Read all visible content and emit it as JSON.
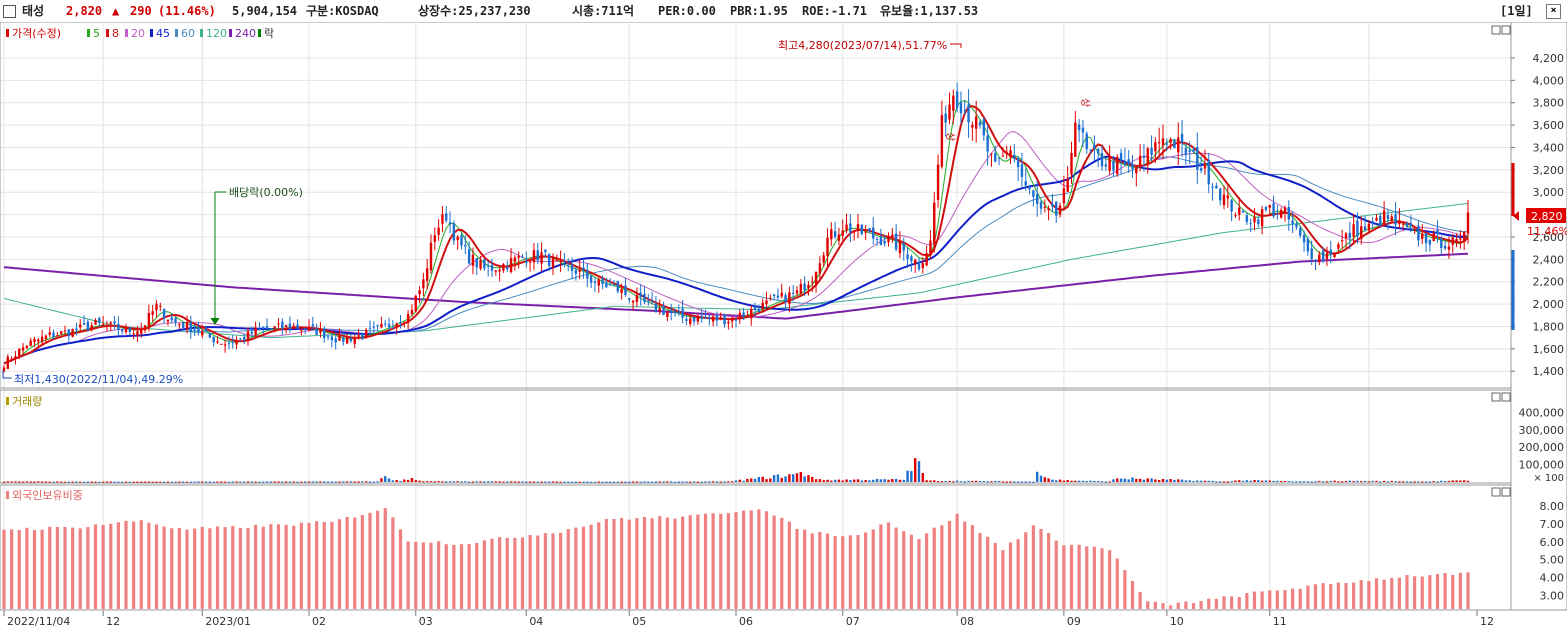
{
  "header": {
    "name": "태성",
    "price": "2,820",
    "change_arrow": "▲",
    "change": "290",
    "change_pct": "(11.46%)",
    "volume": "5,904,154",
    "market": "구분:KOSDAQ",
    "listed": "상장수:25,237,230",
    "cap": "시총:711억",
    "per": "PER:0.00",
    "pbr": "PBR:1.95",
    "roe": "ROE:-1.71",
    "float": "유보율:1,137.53",
    "period": "[1일]"
  },
  "colors": {
    "up": "#e00000",
    "down": "#1a6fd0",
    "ma5": "#22aa22",
    "ma8": "#d01010",
    "ma20": "#c060c0",
    "ma45": "#1020c8",
    "ma60": "#4a8cc0",
    "ma120": "#40b090",
    "ma240": "#7a20a8",
    "foreign": "#f08080",
    "grid": "#e4e4e4"
  },
  "chart_data": {
    "type": "candlestick",
    "title": "태성 일봉",
    "x_labels": [
      "2022/11/04",
      "12",
      "2023/01",
      "02",
      "03",
      "04",
      "05",
      "06",
      "07",
      "08",
      "09",
      "10",
      "11",
      "12"
    ],
    "price_axis": {
      "ticks": [
        "4,200",
        "4,000",
        "3,800",
        "3,600",
        "3,400",
        "3,200",
        "3,000",
        "2,800",
        "2,600",
        "2,400",
        "2,200",
        "2,000",
        "1,800",
        "1,600",
        "1,400"
      ],
      "range": [
        1250,
        4450
      ]
    },
    "legend": {
      "price": "가격(수정)",
      "ma": [
        {
          "label": "5",
          "key": "ma5"
        },
        {
          "label": "8",
          "key": "ma8"
        },
        {
          "label": "20",
          "key": "ma20"
        },
        {
          "label": "45",
          "key": "ma45"
        },
        {
          "label": "60",
          "key": "ma60"
        },
        {
          "label": "120",
          "key": "ma120"
        },
        {
          "label": "240",
          "key": "ma240"
        }
      ],
      "extra": "락"
    },
    "annotations": {
      "high": "최고4,280(2023/07/14),51.77%",
      "low": "최저1,430(2022/11/04),49.29%",
      "dividend": "배당락(0.00%)",
      "marker1": "상",
      "marker2": "상"
    },
    "current_price_tag": "2,820",
    "current_pct_tag": "11.46%",
    "volume_pane": {
      "label": "거래량",
      "ticks": [
        "400,000",
        "300,000",
        "200,000",
        "100,000"
      ],
      "unit": "× 100"
    },
    "foreign_pane": {
      "label": "외국인보유비중",
      "ticks": [
        "8.00",
        "7.00",
        "6.00",
        "5.00",
        "4.00",
        "3.00"
      ],
      "range": [
        2.3,
        8.9
      ]
    },
    "anchors": [
      [
        0,
        1470
      ],
      [
        6,
        1640
      ],
      [
        12,
        1720
      ],
      [
        18,
        1760
      ],
      [
        24,
        1820
      ],
      [
        28,
        1800
      ],
      [
        32,
        1760
      ],
      [
        36,
        1780
      ],
      [
        40,
        1980
      ],
      [
        44,
        1850
      ],
      [
        50,
        1780
      ],
      [
        54,
        1700
      ],
      [
        58,
        1650
      ],
      [
        62,
        1680
      ],
      [
        66,
        1760
      ],
      [
        70,
        1780
      ],
      [
        76,
        1800
      ],
      [
        82,
        1760
      ],
      [
        88,
        1680
      ],
      [
        94,
        1720
      ],
      [
        100,
        1800
      ],
      [
        106,
        1900
      ],
      [
        110,
        2200
      ],
      [
        113,
        2650
      ],
      [
        116,
        2800
      ],
      [
        119,
        2550
      ],
      [
        122,
        2420
      ],
      [
        126,
        2310
      ],
      [
        131,
        2350
      ],
      [
        136,
        2420
      ],
      [
        141,
        2440
      ],
      [
        146,
        2330
      ],
      [
        150,
        2300
      ],
      [
        156,
        2180
      ],
      [
        160,
        2150
      ],
      [
        166,
        2030
      ],
      [
        172,
        1950
      ],
      [
        178,
        1880
      ],
      [
        184,
        1870
      ],
      [
        190,
        1860
      ],
      [
        196,
        1940
      ],
      [
        202,
        2030
      ],
      [
        208,
        2100
      ],
      [
        212,
        2250
      ],
      [
        216,
        2580
      ],
      [
        220,
        2700
      ],
      [
        224,
        2650
      ],
      [
        228,
        2600
      ],
      [
        233,
        2560
      ],
      [
        237,
        2450
      ],
      [
        240,
        2350
      ],
      [
        243,
        2550
      ],
      [
        246,
        3600
      ],
      [
        249,
        3900
      ],
      [
        252,
        3750
      ],
      [
        256,
        3550
      ],
      [
        260,
        3200
      ],
      [
        264,
        3400
      ],
      [
        268,
        3050
      ],
      [
        272,
        2820
      ],
      [
        276,
        2800
      ],
      [
        279,
        3050
      ],
      [
        281,
        3700
      ],
      [
        284,
        3350
      ],
      [
        288,
        3280
      ],
      [
        292,
        3250
      ],
      [
        296,
        3200
      ],
      [
        300,
        3330
      ],
      [
        304,
        3500
      ],
      [
        308,
        3420
      ],
      [
        312,
        3300
      ],
      [
        316,
        3150
      ],
      [
        320,
        2950
      ],
      [
        324,
        2800
      ],
      [
        328,
        2760
      ],
      [
        332,
        2850
      ],
      [
        336,
        2800
      ],
      [
        339,
        2650
      ],
      [
        342,
        2460
      ],
      [
        346,
        2420
      ],
      [
        350,
        2520
      ],
      [
        354,
        2660
      ],
      [
        358,
        2680
      ],
      [
        362,
        2780
      ],
      [
        366,
        2700
      ],
      [
        370,
        2620
      ],
      [
        374,
        2580
      ],
      [
        378,
        2550
      ],
      [
        382,
        2530
      ],
      [
        384,
        2820
      ]
    ],
    "volume_anchors": [
      [
        0,
        3.0
      ],
      [
        14,
        2.5
      ],
      [
        40,
        2.0
      ],
      [
        98,
        3.0
      ],
      [
        100,
        35
      ],
      [
        102,
        13
      ],
      [
        104,
        6
      ],
      [
        107,
        22
      ],
      [
        110,
        4
      ],
      [
        150,
        2
      ],
      [
        190,
        3
      ],
      [
        209,
        47
      ],
      [
        211,
        42
      ],
      [
        214,
        12
      ],
      [
        236,
        14
      ],
      [
        238,
        93
      ],
      [
        240,
        110
      ],
      [
        242,
        8
      ],
      [
        270,
        2
      ],
      [
        271,
        80
      ],
      [
        273,
        32
      ],
      [
        275,
        14
      ],
      [
        278,
        10
      ],
      [
        290,
        3
      ],
      [
        292,
        22
      ],
      [
        320,
        3
      ],
      [
        325,
        10
      ],
      [
        340,
        3
      ],
      [
        350,
        6
      ],
      [
        364,
        5
      ],
      [
        370,
        3
      ],
      [
        384,
        8
      ]
    ],
    "foreign_anchors": [
      [
        0,
        6.7
      ],
      [
        18,
        6.8
      ],
      [
        36,
        7.2
      ],
      [
        46,
        6.7
      ],
      [
        60,
        6.8
      ],
      [
        86,
        7.1
      ],
      [
        100,
        7.9
      ],
      [
        106,
        6.1
      ],
      [
        120,
        5.9
      ],
      [
        146,
        6.6
      ],
      [
        160,
        7.3
      ],
      [
        180,
        7.4
      ],
      [
        198,
        7.9
      ],
      [
        210,
        6.6
      ],
      [
        222,
        6.3
      ],
      [
        232,
        7.1
      ],
      [
        240,
        6.2
      ],
      [
        250,
        7.5
      ],
      [
        262,
        5.6
      ],
      [
        270,
        6.9
      ],
      [
        278,
        5.9
      ],
      [
        290,
        5.6
      ],
      [
        300,
        2.6
      ],
      [
        306,
        2.5
      ],
      [
        318,
        2.8
      ],
      [
        330,
        3.2
      ],
      [
        350,
        3.7
      ],
      [
        368,
        4.1
      ],
      [
        384,
        4.2
      ]
    ]
  }
}
